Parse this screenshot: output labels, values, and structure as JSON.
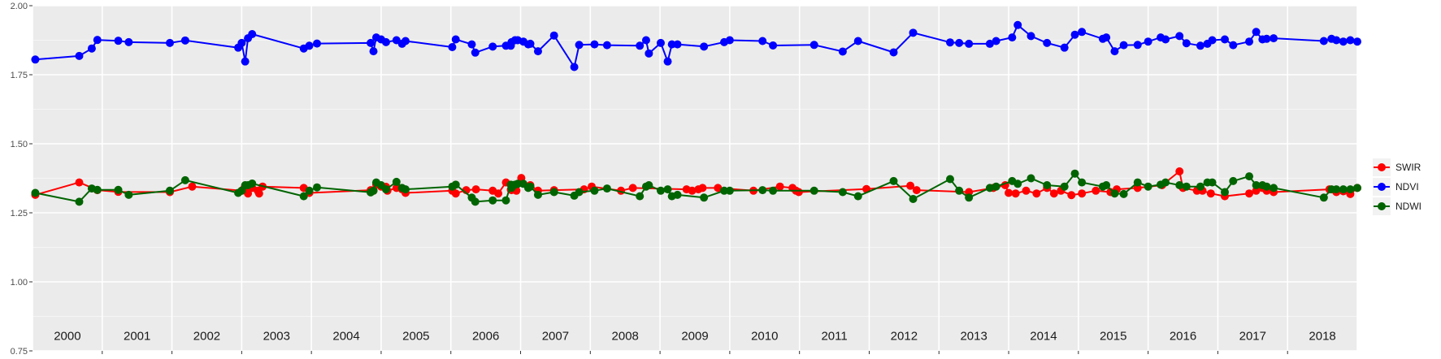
{
  "chart_data": {
    "type": "line",
    "title": "",
    "xlabel": "",
    "ylabel": "",
    "ylim": [
      0.75,
      2.0
    ],
    "yticks": [
      "0.75",
      "1.00",
      "1.25",
      "1.50",
      "1.75",
      "2.00"
    ],
    "year_range": [
      2000,
      2019
    ],
    "year_labels": [
      "2000",
      "2001",
      "2002",
      "2003",
      "2004",
      "2005",
      "2006",
      "2007",
      "2008",
      "2009",
      "2010",
      "2011",
      "2012",
      "2013",
      "2014",
      "2015",
      "2016",
      "2017",
      "2018"
    ],
    "grid": true,
    "legend_position": "right",
    "series": [
      {
        "name": "SWIR",
        "color": "#ff0000",
        "x": [
          2000.04,
          2000.67,
          2000.93,
          2001.23,
          2001.97,
          2002.29,
          2003.0,
          2003.04,
          2003.09,
          2003.15,
          2003.23,
          2003.25,
          2003.3,
          2003.89,
          2003.97,
          2004.85,
          2004.89,
          2004.93,
          2005.0,
          2005.07,
          2005.09,
          2005.22,
          2005.3,
          2005.35,
          2006.02,
          2006.07,
          2006.22,
          2006.36,
          2006.6,
          2006.68,
          2006.79,
          2006.86,
          2006.87,
          2006.94,
          2007.01,
          2007.11,
          2007.14,
          2007.25,
          2007.48,
          2007.91,
          2008.02,
          2008.44,
          2008.61,
          2009.38,
          2009.46,
          2009.55,
          2009.61,
          2009.83,
          2010.34,
          2010.72,
          2010.9,
          2010.95,
          2010.99,
          2011.96,
          2012.59,
          2012.68,
          2013.43,
          2013.78,
          2013.95,
          2014.0,
          2014.1,
          2014.25,
          2014.4,
          2014.55,
          2014.65,
          2014.75,
          2014.9,
          2015.05,
          2015.25,
          2015.46,
          2015.55,
          2015.85,
          2016.2,
          2016.45,
          2016.5,
          2016.7,
          2016.78,
          2016.9,
          2017.1,
          2017.45,
          2017.55,
          2017.64,
          2017.7,
          2017.8,
          2018.6,
          2018.7,
          2018.8,
          2018.9,
          2019.0
        ],
        "y": [
          1.315,
          1.36,
          1.332,
          1.326,
          1.325,
          1.345,
          1.33,
          1.34,
          1.32,
          1.34,
          1.33,
          1.32,
          1.345,
          1.34,
          1.322,
          1.332,
          1.33,
          1.352,
          1.345,
          1.344,
          1.33,
          1.34,
          1.335,
          1.322,
          1.33,
          1.32,
          1.332,
          1.335,
          1.33,
          1.32,
          1.36,
          1.334,
          1.332,
          1.33,
          1.376,
          1.345,
          1.35,
          1.33,
          1.332,
          1.335,
          1.345,
          1.33,
          1.34,
          1.335,
          1.33,
          1.335,
          1.34,
          1.34,
          1.33,
          1.345,
          1.34,
          1.33,
          1.325,
          1.336,
          1.348,
          1.332,
          1.325,
          1.34,
          1.35,
          1.322,
          1.32,
          1.33,
          1.32,
          1.34,
          1.32,
          1.33,
          1.314,
          1.32,
          1.33,
          1.325,
          1.335,
          1.34,
          1.35,
          1.4,
          1.34,
          1.33,
          1.33,
          1.32,
          1.31,
          1.32,
          1.33,
          1.34,
          1.33,
          1.325,
          1.335,
          1.325,
          1.328,
          1.318,
          1.34
        ]
      },
      {
        "name": "NDVI",
        "color": "#0000ff",
        "x": [
          2000.04,
          2000.67,
          2000.85,
          2000.93,
          2001.23,
          2001.38,
          2001.97,
          2002.19,
          2002.95,
          2003.0,
          2003.05,
          2003.09,
          2003.15,
          2003.89,
          2003.97,
          2004.08,
          2004.85,
          2004.89,
          2004.93,
          2005.0,
          2005.07,
          2005.22,
          2005.3,
          2005.35,
          2006.02,
          2006.07,
          2006.3,
          2006.35,
          2006.6,
          2006.79,
          2006.86,
          2006.87,
          2006.92,
          2006.96,
          2007.04,
          2007.11,
          2007.14,
          2007.25,
          2007.48,
          2007.77,
          2007.84,
          2008.06,
          2008.24,
          2008.71,
          2008.8,
          2008.84,
          2009.01,
          2009.11,
          2009.17,
          2009.25,
          2009.63,
          2009.92,
          2010.0,
          2010.47,
          2010.62,
          2011.21,
          2011.62,
          2011.84,
          2012.35,
          2012.63,
          2013.16,
          2013.29,
          2013.43,
          2013.73,
          2013.82,
          2014.05,
          2014.13,
          2014.32,
          2014.55,
          2014.8,
          2014.95,
          2015.05,
          2015.35,
          2015.4,
          2015.52,
          2015.65,
          2015.85,
          2016.0,
          2016.18,
          2016.25,
          2016.45,
          2016.55,
          2016.75,
          2016.85,
          2016.92,
          2017.1,
          2017.22,
          2017.45,
          2017.55,
          2017.64,
          2017.7,
          2017.8,
          2018.52,
          2018.63,
          2018.7,
          2018.8,
          2018.9,
          2019.0
        ],
        "y": [
          1.805,
          1.818,
          1.845,
          1.876,
          1.873,
          1.868,
          1.865,
          1.874,
          1.848,
          1.865,
          1.798,
          1.882,
          1.897,
          1.845,
          1.855,
          1.863,
          1.865,
          1.835,
          1.885,
          1.878,
          1.868,
          1.875,
          1.862,
          1.872,
          1.85,
          1.878,
          1.86,
          1.83,
          1.852,
          1.855,
          1.855,
          1.868,
          1.875,
          1.875,
          1.87,
          1.86,
          1.862,
          1.835,
          1.892,
          1.778,
          1.858,
          1.86,
          1.857,
          1.855,
          1.875,
          1.827,
          1.865,
          1.798,
          1.86,
          1.86,
          1.852,
          1.868,
          1.875,
          1.872,
          1.856,
          1.858,
          1.834,
          1.872,
          1.831,
          1.902,
          1.867,
          1.865,
          1.862,
          1.862,
          1.872,
          1.885,
          1.93,
          1.89,
          1.865,
          1.848,
          1.895,
          1.905,
          1.88,
          1.885,
          1.835,
          1.857,
          1.858,
          1.87,
          1.885,
          1.878,
          1.89,
          1.864,
          1.855,
          1.862,
          1.875,
          1.878,
          1.857,
          1.87,
          1.905,
          1.878,
          1.88,
          1.882,
          1.872,
          1.88,
          1.875,
          1.87,
          1.875,
          1.87
        ]
      },
      {
        "name": "NDWI",
        "color": "#006400",
        "x": [
          2000.04,
          2000.67,
          2000.85,
          2000.93,
          2001.23,
          2001.38,
          2001.97,
          2002.19,
          2002.95,
          2003.0,
          2003.05,
          2003.09,
          2003.15,
          2003.89,
          2003.97,
          2004.08,
          2004.85,
          2004.89,
          2004.93,
          2005.0,
          2005.07,
          2005.22,
          2005.3,
          2005.35,
          2006.02,
          2006.07,
          2006.3,
          2006.35,
          2006.6,
          2006.79,
          2006.86,
          2006.87,
          2006.92,
          2006.96,
          2007.04,
          2007.11,
          2007.14,
          2007.25,
          2007.48,
          2007.77,
          2007.84,
          2008.06,
          2008.24,
          2008.71,
          2008.8,
          2008.84,
          2009.01,
          2009.11,
          2009.17,
          2009.25,
          2009.63,
          2009.92,
          2010.0,
          2010.47,
          2010.62,
          2011.21,
          2011.62,
          2011.84,
          2012.35,
          2012.63,
          2013.16,
          2013.29,
          2013.43,
          2013.73,
          2013.82,
          2014.05,
          2014.13,
          2014.32,
          2014.55,
          2014.8,
          2014.95,
          2015.05,
          2015.35,
          2015.4,
          2015.52,
          2015.65,
          2015.85,
          2016.0,
          2016.18,
          2016.25,
          2016.45,
          2016.55,
          2016.75,
          2016.85,
          2016.92,
          2017.1,
          2017.22,
          2017.45,
          2017.55,
          2017.64,
          2017.7,
          2017.8,
          2018.52,
          2018.63,
          2018.7,
          2018.8,
          2018.9,
          2019.0
        ],
        "y": [
          1.322,
          1.29,
          1.338,
          1.333,
          1.333,
          1.315,
          1.33,
          1.368,
          1.322,
          1.33,
          1.35,
          1.35,
          1.356,
          1.31,
          1.33,
          1.342,
          1.324,
          1.33,
          1.36,
          1.35,
          1.335,
          1.362,
          1.34,
          1.335,
          1.345,
          1.352,
          1.305,
          1.29,
          1.295,
          1.295,
          1.352,
          1.34,
          1.352,
          1.355,
          1.355,
          1.34,
          1.345,
          1.315,
          1.325,
          1.312,
          1.325,
          1.33,
          1.338,
          1.31,
          1.345,
          1.35,
          1.33,
          1.335,
          1.31,
          1.315,
          1.305,
          1.33,
          1.33,
          1.332,
          1.33,
          1.33,
          1.325,
          1.31,
          1.365,
          1.3,
          1.372,
          1.33,
          1.305,
          1.34,
          1.345,
          1.365,
          1.355,
          1.375,
          1.35,
          1.345,
          1.392,
          1.36,
          1.345,
          1.35,
          1.32,
          1.318,
          1.36,
          1.345,
          1.352,
          1.36,
          1.35,
          1.345,
          1.345,
          1.36,
          1.36,
          1.325,
          1.365,
          1.382,
          1.35,
          1.35,
          1.345,
          1.34,
          1.305,
          1.335,
          1.335,
          1.335,
          1.335,
          1.34
        ]
      }
    ]
  }
}
